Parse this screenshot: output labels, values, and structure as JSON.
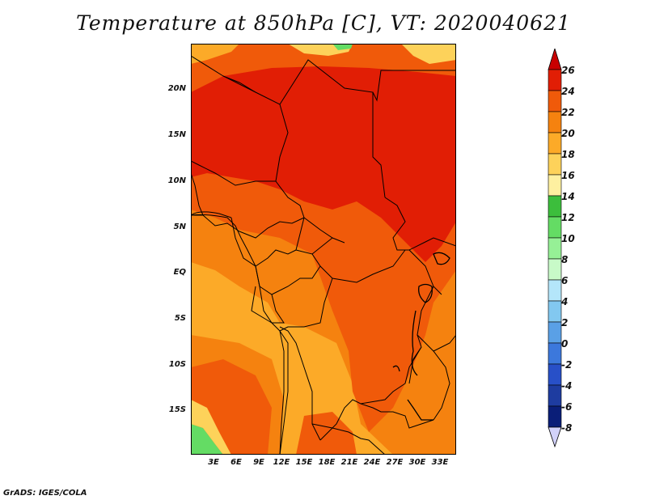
{
  "title": "Temperature at 850hPa [C], VT: 2020040621",
  "footer": "GrADS: IGES/COLA",
  "map": {
    "region": "Central Africa",
    "variable": "Temperature at 850hPa",
    "units": "C",
    "valid_time": "2020040621",
    "lat_ticks": [
      "20N",
      "15N",
      "10N",
      "5N",
      "EQ",
      "5S",
      "10S",
      "15S"
    ],
    "lon_ticks": [
      "3E",
      "6E",
      "9E",
      "12E",
      "15E",
      "18E",
      "21E",
      "24E",
      "27E",
      "30E",
      "33E"
    ]
  },
  "colorbar": {
    "labels": [
      "26",
      "24",
      "22",
      "20",
      "18",
      "16",
      "14",
      "12",
      "10",
      "8",
      "6",
      "4",
      "2",
      "0",
      "-2",
      "-4",
      "-6",
      "-8"
    ],
    "colors": [
      "#a00000",
      "#e11e05",
      "#f05a0a",
      "#f5820f",
      "#fcaa28",
      "#fdd25a",
      "#fef0a0",
      "#3cbe3c",
      "#64dc64",
      "#96f096",
      "#c8fac8",
      "#b4e6fa",
      "#82c8f0",
      "#5aa0e6",
      "#3c78dc",
      "#2850c8",
      "#1e3ca0",
      "#0a1e78",
      "#000050"
    ],
    "top_arrow_color": "#c80000",
    "bottom_arrow_color": "#d2d2fa"
  }
}
